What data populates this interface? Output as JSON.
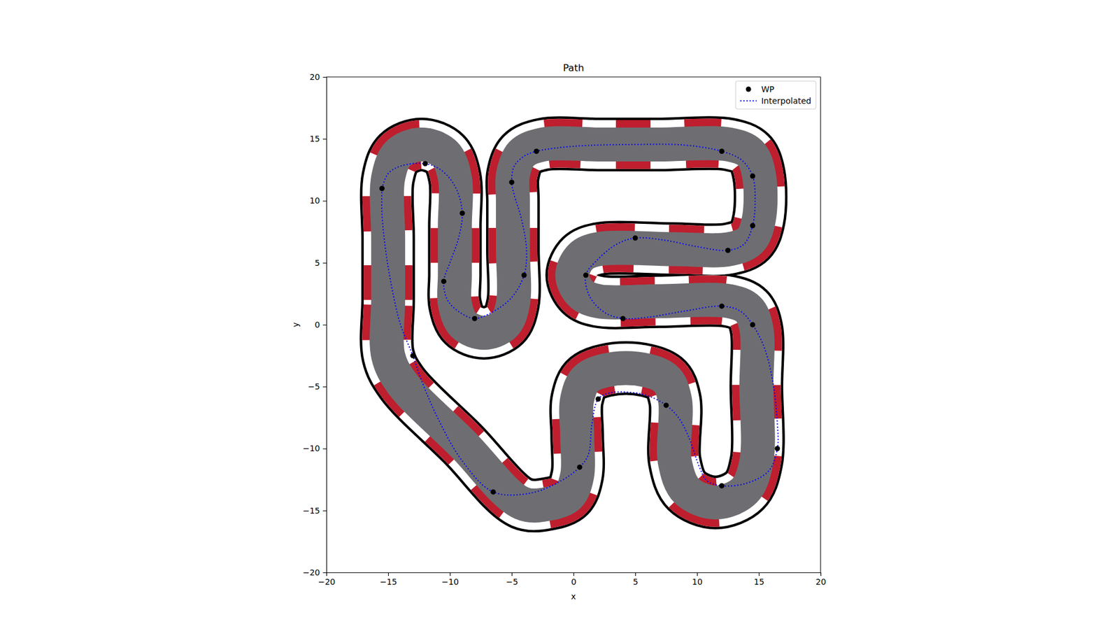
{
  "chart_data": {
    "type": "line",
    "title": "Path",
    "x_label": "x",
    "y_label": "y",
    "xlim": [
      -20,
      20
    ],
    "ylim": [
      -20,
      20
    ],
    "xticks": [
      {
        "value": -20,
        "label": "−20"
      },
      {
        "value": -15,
        "label": "−15"
      },
      {
        "value": -10,
        "label": "−10"
      },
      {
        "value": -5,
        "label": "−5"
      },
      0,
      5,
      10,
      15,
      20
    ],
    "yticks": [
      {
        "value": -20,
        "label": "−20"
      },
      {
        "value": -15,
        "label": "−15"
      },
      {
        "value": -10,
        "label": "−10"
      },
      {
        "value": -5,
        "label": "−5"
      },
      0,
      5,
      10,
      15,
      20
    ],
    "grid": false,
    "legend": "upper right",
    "series": [
      {
        "name": "WP",
        "type": "scatter",
        "marker": "circle",
        "color": "#000000",
        "x": [
          -15.5,
          -12,
          -9,
          -10.5,
          -8,
          -4,
          -5,
          -3,
          12,
          14.5,
          14.5,
          12.5,
          5,
          1,
          4,
          12,
          14.5,
          16.5,
          12,
          7.5,
          2,
          0.5,
          -6.5,
          -13
        ],
        "values": [
          11,
          13,
          9,
          3.5,
          0.5,
          4,
          11.5,
          14,
          14,
          12,
          8,
          6,
          7,
          4,
          0.5,
          1.5,
          0,
          -10,
          -13,
          -6.5,
          -6,
          -11.5,
          -13.5,
          -2.5
        ]
      },
      {
        "name": "Interpolated",
        "type": "line",
        "line_style": "dotted",
        "color": "#0000ff",
        "x": [
          -15.5,
          -15,
          -14,
          -12,
          -10.6,
          -9.5,
          -9,
          -9.3,
          -10,
          -10.5,
          -10.2,
          -9.2,
          -8,
          -6.6,
          -5,
          -4,
          -3.8,
          -4.2,
          -4.8,
          -5,
          -4.8,
          -4,
          -3,
          0,
          5,
          9,
          12,
          13.6,
          14.5,
          14.7,
          14.5,
          13.8,
          12.5,
          10,
          7.5,
          5,
          3.5,
          2,
          1,
          1.3,
          2.5,
          4,
          6,
          9,
          12,
          13.5,
          14.5,
          15.5,
          16.2,
          16.5,
          16.5,
          15.8,
          14,
          12,
          10.8,
          10.2,
          9.3,
          8.5,
          7.5,
          6.2,
          5,
          3,
          2,
          1.5,
          1.2,
          0.5,
          -1,
          -3.5,
          -6.5,
          -9,
          -11,
          -12.3,
          -13,
          -14,
          -14.7,
          -15.2,
          -15.5,
          -15.5
        ],
        "values": [
          11,
          12.2,
          12.8,
          13,
          12.4,
          11,
          9,
          7,
          5,
          3.5,
          2,
          1,
          0.5,
          1,
          2.2,
          4,
          6,
          8.5,
          10.5,
          11.5,
          12.8,
          13.6,
          14,
          14.4,
          14.55,
          14.5,
          14,
          13.3,
          12,
          10,
          8,
          6.5,
          6,
          6.3,
          6.8,
          7,
          6.5,
          5.3,
          4,
          2.3,
          1,
          0.5,
          0.6,
          1.1,
          1.5,
          1.1,
          0,
          -2,
          -5,
          -8,
          -10,
          -11.8,
          -12.8,
          -13,
          -12.6,
          -11.5,
          -9,
          -7.5,
          -6.5,
          -5.8,
          -5.5,
          -5.5,
          -6,
          -8,
          -10.5,
          -11.5,
          -12.6,
          -13.6,
          -13.5,
          -11,
          -7.5,
          -4.5,
          -2.5,
          0,
          3,
          6,
          9,
          11
        ]
      },
      {
        "type": "track",
        "color": "#6e6e72",
        "x": [
          -15,
          -15,
          -15,
          -15,
          -14.2,
          -12.3,
          -10.4,
          -9.6,
          -9.6,
          -9.6,
          -9.6,
          -8.9,
          -7.25,
          -5.6,
          -4.9,
          -4.9,
          -4.9,
          -4.9,
          -4.2,
          -2.45,
          2,
          7,
          12.6,
          14.3,
          15,
          15,
          14.3,
          12.6,
          8,
          2,
          0.6,
          -0.1,
          0.6,
          2,
          7,
          12.6,
          14.15,
          14.8,
          14.8,
          14.8,
          13.85,
          11.5,
          9.15,
          8.2,
          8.2,
          7.4,
          4.25,
          1.1,
          0.3,
          0.3,
          0.3,
          -0.37,
          -2,
          -4.2,
          -9,
          -13.9
        ],
        "values": [
          -2.5,
          2,
          7,
          11.85,
          13.8,
          14.55,
          13.8,
          11.85,
          8,
          4,
          1.7,
          0,
          -0.65,
          0,
          1.7,
          6,
          10,
          12.1,
          13.8,
          14.55,
          14.55,
          14.55,
          14.55,
          13.85,
          12.15,
          8.5,
          6.8,
          6.1,
          6.1,
          6.1,
          5.5,
          4,
          2.5,
          1.9,
          1.9,
          1.9,
          1.25,
          -0.3,
          -5,
          -11.05,
          -13.4,
          -14.35,
          -13.4,
          -11.05,
          -6,
          -4.3,
          -3.5,
          -4.3,
          -6,
          -9,
          -12.15,
          -13.8,
          -14.45,
          -14.4,
          -9.6,
          -4.7
        ]
      }
    ]
  }
}
